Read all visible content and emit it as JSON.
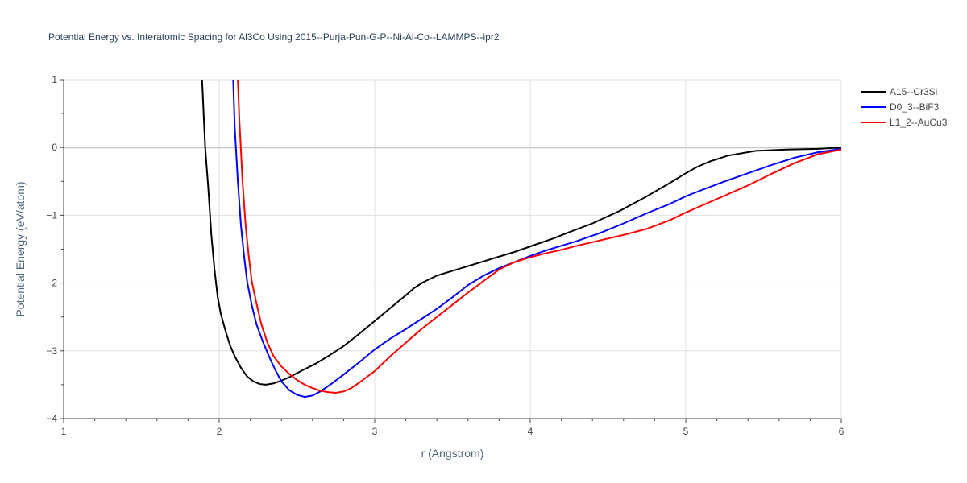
{
  "chart_data": {
    "type": "line",
    "title": "Potential Energy vs. Interatomic Spacing for Al3Co Using 2015--Purja-Pun-G-P--Ni-Al-Co--LAMMPS--ipr2",
    "xlabel": "r (Angstrom)",
    "ylabel": "Potential Energy (eV/atom)",
    "xlim": [
      1,
      6
    ],
    "ylim": [
      -4,
      1
    ],
    "xticks": [
      1,
      2,
      3,
      4,
      5,
      6
    ],
    "xtick_labels": [
      "1",
      "2",
      "3",
      "4",
      "5",
      "6"
    ],
    "yticks": [
      1,
      0,
      -1,
      -2,
      -3,
      -4
    ],
    "ytick_labels": [
      "1",
      "0",
      "−1",
      "−2",
      "−3",
      "−4"
    ],
    "grid": true,
    "legend_position": "top-right",
    "series": [
      {
        "name": "A15--Cr3Si",
        "color": "#000000",
        "x": [
          1.89,
          1.91,
          1.93,
          1.95,
          1.97,
          1.99,
          2.01,
          2.04,
          2.07,
          2.1,
          2.14,
          2.18,
          2.22,
          2.26,
          2.3,
          2.35,
          2.4,
          2.45,
          2.5,
          2.55,
          2.62,
          2.7,
          2.8,
          2.9,
          3.0,
          3.1,
          3.2,
          3.25,
          3.31,
          3.4,
          3.5,
          3.6,
          3.7,
          3.8,
          3.9,
          4.0,
          4.15,
          4.25,
          4.4,
          4.58,
          4.75,
          4.9,
          5.0,
          5.07,
          5.15,
          5.27,
          5.45,
          5.65,
          5.85,
          6.0
        ],
        "y": [
          1.0,
          0.0,
          -0.6,
          -1.3,
          -1.8,
          -2.2,
          -2.45,
          -2.7,
          -2.92,
          -3.08,
          -3.25,
          -3.38,
          -3.45,
          -3.49,
          -3.5,
          -3.48,
          -3.44,
          -3.39,
          -3.33,
          -3.27,
          -3.19,
          -3.08,
          -2.93,
          -2.75,
          -2.56,
          -2.37,
          -2.18,
          -2.08,
          -1.99,
          -1.89,
          -1.82,
          -1.75,
          -1.68,
          -1.61,
          -1.54,
          -1.46,
          -1.34,
          -1.25,
          -1.12,
          -0.93,
          -0.72,
          -0.52,
          -0.38,
          -0.29,
          -0.21,
          -0.12,
          -0.05,
          -0.03,
          -0.02,
          0.0
        ]
      },
      {
        "name": "D0_3--BiF3",
        "color": "#0000ff",
        "x": [
          2.09,
          2.1,
          2.12,
          2.14,
          2.16,
          2.18,
          2.21,
          2.24,
          2.28,
          2.32,
          2.36,
          2.4,
          2.45,
          2.5,
          2.55,
          2.6,
          2.65,
          2.72,
          2.8,
          2.9,
          3.0,
          3.1,
          3.2,
          3.3,
          3.4,
          3.5,
          3.6,
          3.7,
          3.8,
          3.9,
          4.0,
          4.1,
          4.2,
          4.3,
          4.45,
          4.6,
          4.75,
          4.9,
          5.0,
          5.1,
          5.25,
          5.4,
          5.55,
          5.7,
          5.85,
          6.0
        ],
        "y": [
          1.0,
          0.3,
          -0.5,
          -1.15,
          -1.6,
          -1.98,
          -2.33,
          -2.61,
          -2.86,
          -3.08,
          -3.28,
          -3.45,
          -3.58,
          -3.65,
          -3.68,
          -3.66,
          -3.6,
          -3.49,
          -3.35,
          -3.17,
          -2.98,
          -2.82,
          -2.68,
          -2.53,
          -2.38,
          -2.21,
          -2.03,
          -1.89,
          -1.78,
          -1.69,
          -1.6,
          -1.52,
          -1.45,
          -1.38,
          -1.26,
          -1.12,
          -0.97,
          -0.83,
          -0.72,
          -0.63,
          -0.5,
          -0.38,
          -0.26,
          -0.15,
          -0.07,
          -0.02
        ]
      },
      {
        "name": "L1_2--AuCu3",
        "color": "#ff0000",
        "x": [
          2.12,
          2.13,
          2.15,
          2.17,
          2.19,
          2.21,
          2.24,
          2.27,
          2.31,
          2.35,
          2.4,
          2.45,
          2.5,
          2.55,
          2.6,
          2.65,
          2.7,
          2.75,
          2.8,
          2.85,
          2.9,
          3.0,
          3.1,
          3.2,
          3.3,
          3.4,
          3.5,
          3.6,
          3.7,
          3.8,
          3.9,
          4.0,
          4.1,
          4.2,
          4.3,
          4.45,
          4.6,
          4.75,
          4.9,
          5.0,
          5.1,
          5.25,
          5.4,
          5.55,
          5.7,
          5.85,
          6.0
        ],
        "y": [
          1.0,
          0.4,
          -0.5,
          -1.15,
          -1.6,
          -1.98,
          -2.3,
          -2.6,
          -2.88,
          -3.08,
          -3.23,
          -3.34,
          -3.43,
          -3.5,
          -3.55,
          -3.59,
          -3.61,
          -3.62,
          -3.6,
          -3.55,
          -3.47,
          -3.3,
          -3.08,
          -2.88,
          -2.68,
          -2.5,
          -2.32,
          -2.14,
          -1.97,
          -1.8,
          -1.69,
          -1.62,
          -1.56,
          -1.51,
          -1.45,
          -1.37,
          -1.29,
          -1.2,
          -1.07,
          -0.96,
          -0.86,
          -0.71,
          -0.56,
          -0.39,
          -0.23,
          -0.1,
          -0.03
        ]
      }
    ]
  }
}
